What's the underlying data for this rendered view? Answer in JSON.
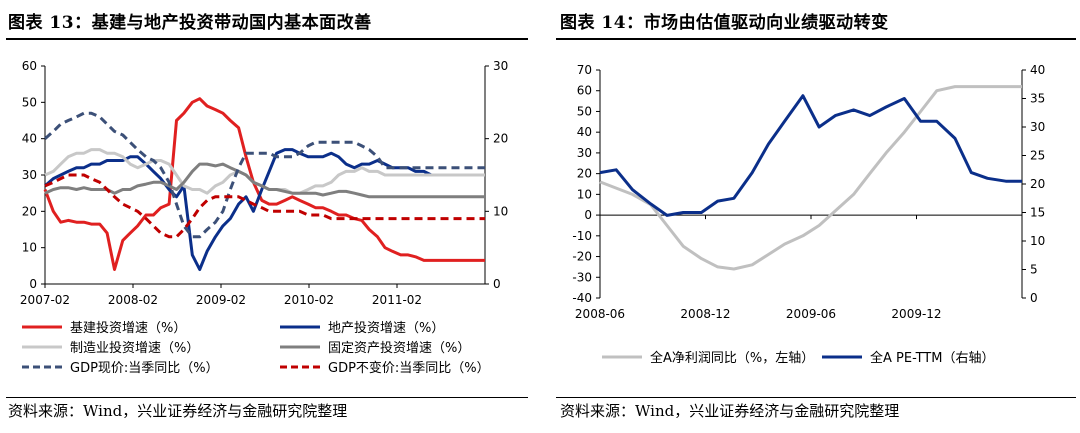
{
  "fig13": {
    "title": "图表 13：基建与地产投资带动国内基本面改善",
    "source": "资料来源：Wind，兴业证券经济与金融研究院整理",
    "chart_data": {
      "type": "line",
      "x_ticks": [
        "2007-02",
        "2008-02",
        "2009-02",
        "2010-02",
        "2011-02"
      ],
      "x": [
        2007.08,
        2007.17,
        2007.25,
        2007.33,
        2007.42,
        2007.5,
        2007.58,
        2007.67,
        2007.75,
        2007.83,
        2007.92,
        2008.0,
        2008.08,
        2008.17,
        2008.25,
        2008.33,
        2008.42,
        2008.5,
        2008.58,
        2008.67,
        2008.75,
        2008.83,
        2008.92,
        2009.0,
        2009.08,
        2009.17,
        2009.25,
        2009.33,
        2009.42,
        2009.5,
        2009.58,
        2009.67,
        2009.75,
        2009.83,
        2009.92,
        2010.0,
        2010.08,
        2010.17,
        2010.25,
        2010.33,
        2010.42,
        2010.5,
        2010.58,
        2010.67,
        2010.75,
        2010.83,
        2010.92,
        2011.0,
        2011.08,
        2011.17,
        2011.25,
        2011.33,
        2011.42,
        2011.5,
        2011.58,
        2011.67,
        2011.75,
        2011.83
      ],
      "y_left_lim": [
        0,
        60
      ],
      "y_left_ticks": [
        0,
        10,
        20,
        30,
        40,
        50,
        60
      ],
      "y_right_lim": [
        0,
        30
      ],
      "y_right_ticks": [
        0,
        10,
        20,
        30
      ],
      "series": [
        {
          "name": "基建投资增速（%）",
          "axis": "left",
          "color": "#e02020",
          "dash": false,
          "values": [
            26,
            20,
            17,
            17.5,
            17,
            17,
            16.5,
            16.5,
            14,
            4,
            12,
            14,
            16,
            19,
            19,
            21,
            22,
            45,
            47,
            50,
            51,
            49,
            48,
            47,
            45,
            43,
            35,
            28,
            23,
            22,
            22,
            23,
            24,
            23,
            22,
            21,
            21,
            20,
            19,
            19,
            18,
            17.5,
            15,
            13,
            10,
            9,
            8,
            8,
            7.5,
            6.5,
            6.5,
            6.5,
            6.5,
            6.5,
            6.5,
            6.5,
            6.5,
            6.5
          ]
        },
        {
          "name": "地产投资增速（%）",
          "axis": "left",
          "color": "#0b2f8a",
          "dash": false,
          "values": [
            27,
            29,
            30,
            31,
            32,
            32,
            33,
            33,
            34,
            34,
            34,
            35,
            35,
            33,
            31,
            29,
            26,
            24,
            27,
            8,
            4,
            9,
            13,
            16,
            18,
            22,
            24,
            20,
            26,
            31,
            36,
            37,
            37,
            36,
            35,
            35,
            35,
            36,
            35,
            33,
            32,
            33,
            33,
            34,
            33,
            32,
            32,
            32,
            31,
            31,
            30,
            30,
            30,
            30,
            30,
            30,
            30,
            30
          ]
        },
        {
          "name": "制造业投资增速（%）",
          "axis": "left",
          "color": "#c8c8c8",
          "dash": false,
          "values": [
            30,
            31,
            33,
            35,
            36,
            36,
            37,
            37,
            36,
            36,
            35,
            33,
            32,
            33,
            34,
            34,
            33,
            30,
            27,
            26,
            26,
            25,
            27,
            28,
            30,
            31,
            30,
            28,
            27,
            26,
            26,
            26,
            25,
            25,
            26,
            27,
            27,
            28,
            30,
            31,
            31,
            32,
            31,
            31,
            30,
            30,
            30,
            30,
            30,
            30,
            30,
            30,
            30,
            30,
            30,
            30,
            30,
            30
          ]
        },
        {
          "name": "固定资产投资增速（%）",
          "axis": "left",
          "color": "#7f7f7f",
          "dash": false,
          "values": [
            25,
            26,
            26.5,
            26.5,
            26,
            26.5,
            26,
            26,
            26,
            25,
            26,
            26,
            27,
            27.5,
            28,
            28,
            27,
            26,
            28,
            31,
            33,
            33,
            32.5,
            33,
            32,
            31,
            30,
            28,
            27,
            26,
            26,
            25.5,
            25,
            25,
            25,
            25,
            24.5,
            25,
            25.5,
            25.5,
            25,
            24.5,
            24,
            24,
            24,
            24,
            24,
            24,
            24,
            24,
            24,
            24,
            24,
            24,
            24,
            24,
            24,
            24
          ]
        },
        {
          "name": "GDP现价:当季同比（%）",
          "axis": "right",
          "color": "#3c5078",
          "dash": true,
          "values": [
            20,
            21,
            22,
            22.5,
            23,
            23.5,
            23.5,
            23,
            22,
            21,
            20.5,
            19.5,
            18.5,
            17.5,
            17,
            16,
            14,
            11,
            8,
            6.5,
            6.5,
            7.5,
            8.5,
            10,
            13,
            16,
            18,
            18,
            18,
            18,
            17.5,
            17.5,
            17.5,
            18,
            19,
            19.5,
            19.5,
            19.5,
            19.5,
            19.5,
            19.5,
            19,
            18.5,
            17.5,
            16,
            16,
            16,
            16,
            16,
            16,
            16,
            16,
            16,
            16,
            16,
            16,
            16,
            16
          ]
        },
        {
          "name": "GDP不变价:当季同比（%）",
          "axis": "right",
          "color": "#c00000",
          "dash": true,
          "values": [
            13.5,
            14,
            14.5,
            15,
            15,
            15,
            14.5,
            14,
            13,
            12,
            11,
            10.5,
            10,
            9,
            8,
            7,
            6.5,
            6.5,
            7.5,
            9,
            10.5,
            11.5,
            12,
            12,
            12,
            12,
            11.5,
            11,
            10.5,
            10,
            10,
            10,
            10,
            10,
            9.5,
            9.5,
            9.5,
            9,
            9,
            9,
            9,
            9,
            9,
            9,
            9,
            9,
            9,
            9,
            9,
            9,
            9,
            9,
            9,
            9,
            9,
            9,
            9,
            9
          ]
        }
      ]
    }
  },
  "fig14": {
    "title": "图表 14：市场由估值驱动向业绩驱动转变",
    "source": "资料来源：Wind，兴业证券经济与金融研究院整理",
    "chart_data": {
      "type": "line",
      "x_ticks": [
        "2008-06",
        "2008-12",
        "2009-06",
        "2009-12"
      ],
      "x": [
        2008.42,
        2008.5,
        2008.58,
        2008.67,
        2008.75,
        2008.83,
        2008.92,
        2009.0,
        2009.08,
        2009.17,
        2009.25,
        2009.33,
        2009.42,
        2009.5,
        2009.58,
        2009.67,
        2009.75,
        2009.83,
        2009.92,
        2010.0,
        2010.08,
        2010.17,
        2010.25,
        2010.33,
        2010.42,
        2010.5
      ],
      "y_left_lim": [
        -40,
        70
      ],
      "y_left_ticks": [
        -40,
        -30,
        -20,
        -10,
        0,
        10,
        20,
        30,
        40,
        50,
        60,
        70
      ],
      "y_right_lim": [
        0,
        40
      ],
      "y_right_ticks": [
        0,
        5,
        10,
        15,
        20,
        25,
        30,
        35,
        40
      ],
      "series": [
        {
          "name": "全A净利润同比（%，左轴）",
          "axis": "left",
          "color": "#c0c0c0",
          "dash": false,
          "values": [
            16,
            13,
            10,
            5,
            -5,
            -15,
            -21,
            -25,
            -26,
            -24,
            -19,
            -14,
            -10,
            -5,
            2,
            10,
            20,
            30,
            40,
            50,
            60,
            62,
            62,
            62,
            62,
            62
          ]
        },
        {
          "name": "全A PE-TTM（右轴）",
          "axis": "right",
          "color": "#0b2f8a",
          "dash": false,
          "values": [
            22,
            22.5,
            19,
            16.5,
            14.5,
            15,
            15,
            17,
            17.5,
            22,
            27,
            31,
            35.5,
            30,
            32,
            33,
            32,
            33.5,
            35,
            31,
            31,
            28,
            22,
            21,
            20.5,
            20.5
          ]
        }
      ]
    }
  }
}
